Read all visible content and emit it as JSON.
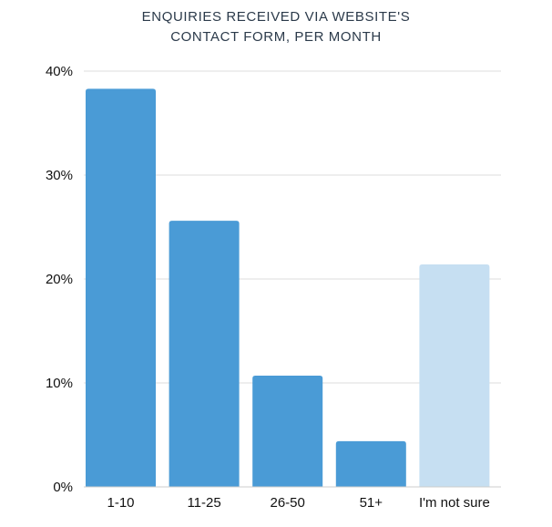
{
  "chart_data": {
    "type": "bar",
    "title_lines": [
      "ENQUIRIES RECEIVED VIA WEBSITE'S",
      "CONTACT FORM, PER MONTH"
    ],
    "categories": [
      "1-10",
      "11-25",
      "26-50",
      "51+",
      "I'm not sure"
    ],
    "values": [
      38.3,
      25.6,
      10.7,
      4.4,
      21.4
    ],
    "bar_colors": [
      "#4a9bd6",
      "#4a9bd6",
      "#4a9bd6",
      "#4a9bd6",
      "#c6dff2"
    ],
    "ylim": [
      0,
      40
    ],
    "yticks": [
      0,
      10,
      20,
      30,
      40
    ],
    "ytick_labels": [
      "0%",
      "10%",
      "20%",
      "30%",
      "40%"
    ],
    "grid": true,
    "gridline_color": "#dddddd",
    "axis_color": "#cccccc",
    "xlabel": "",
    "ylabel": ""
  }
}
